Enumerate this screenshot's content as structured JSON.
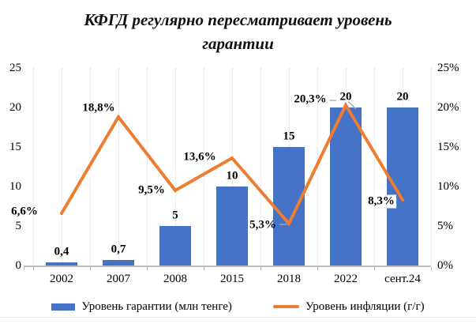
{
  "chart_data": {
    "type": "combo-bar-line",
    "title": "КФГД регулярно пересматривает уровень гарантии",
    "title_lines": [
      "КФГД регулярно пересматривает уровень",
      "гарантии"
    ],
    "categories": [
      "2002",
      "2007",
      "2008",
      "2015",
      "2018",
      "2022",
      "сент.24"
    ],
    "series": [
      {
        "name": "Уровень гарантии (млн тенге)",
        "type": "bar",
        "axis": "left",
        "color": "#4472C4",
        "values": [
          0.4,
          0.7,
          5,
          10,
          15,
          20,
          20
        ],
        "labels": [
          "0,4",
          "0,7",
          "5",
          "10",
          "15",
          "20",
          "20"
        ]
      },
      {
        "name": "Уровень инфляции (г/г)",
        "type": "line",
        "axis": "right",
        "color": "#ED7D31",
        "values": [
          6.6,
          18.8,
          9.5,
          13.6,
          5.3,
          20.3,
          8.3
        ],
        "labels": [
          "6,6%",
          "18,8%",
          "9,5%",
          "13,6%",
          "5,3%",
          "20,3%",
          "8,3%"
        ]
      }
    ],
    "left_axis": {
      "min": 0,
      "max": 25,
      "ticks": [
        "0",
        "5",
        "10",
        "15",
        "20",
        "25"
      ]
    },
    "right_axis": {
      "min": 0,
      "max": 25,
      "ticks": [
        "0%",
        "5%",
        "10%",
        "15%",
        "20%",
        "25%"
      ]
    },
    "legend": {
      "position": "bottom",
      "items": [
        "Уровень гарантии (млн тенге)",
        "Уровень инфляции (г/г)"
      ]
    },
    "grid": "vertical-dotted"
  },
  "colors": {
    "bar": "#4472C4",
    "line": "#ED7D31",
    "axis": "#bfbfbf",
    "gridline": "#dadada",
    "leader": "#a6a6a6",
    "text": "#000000"
  }
}
